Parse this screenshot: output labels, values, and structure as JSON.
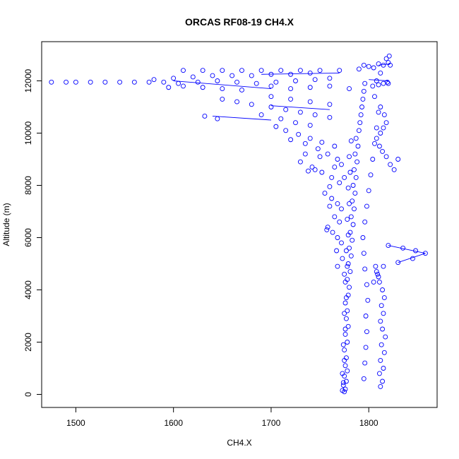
{
  "chart_data": {
    "type": "scatter",
    "title": "ORCAS RF08-19 CH4.X",
    "xlabel": "CH4.X",
    "ylabel": "Altitude (m)",
    "xlim": [
      1465,
      1870
    ],
    "ylim": [
      -500,
      13500
    ],
    "x_ticks": [
      1500,
      1600,
      1700,
      1800
    ],
    "x_tick_labels": [
      "1500",
      "1600",
      "1700",
      "1800"
    ],
    "y_ticks": [
      0,
      2000,
      4000,
      6000,
      8000,
      10000,
      12000
    ],
    "y_tick_labels": [
      "0",
      "2000",
      "4000",
      "6000",
      "8000",
      "10000",
      "12000"
    ],
    "marker": "open-circle",
    "color": "#0000ff",
    "grid": false,
    "series": [
      {
        "points": [
          [
            1775,
            100
          ],
          [
            1776,
            200
          ],
          [
            1774,
            350
          ],
          [
            1777,
            500
          ],
          [
            1775,
            700
          ],
          [
            1778,
            900
          ],
          [
            1776,
            1100
          ],
          [
            1777,
            1400
          ],
          [
            1775,
            1700
          ],
          [
            1778,
            2000
          ],
          [
            1776,
            2300
          ],
          [
            1779,
            2600
          ],
          [
            1777,
            2900
          ],
          [
            1778,
            3200
          ],
          [
            1776,
            3500
          ],
          [
            1779,
            3800
          ],
          [
            1780,
            4100
          ],
          [
            1778,
            4400
          ],
          [
            1781,
            4700
          ],
          [
            1779,
            5000
          ],
          [
            1782,
            5300
          ],
          [
            1780,
            5600
          ],
          [
            1783,
            5900
          ],
          [
            1781,
            6200
          ],
          [
            1784,
            6500
          ],
          [
            1782,
            6800
          ],
          [
            1785,
            7100
          ],
          [
            1783,
            7400
          ],
          [
            1786,
            7700
          ],
          [
            1784,
            8000
          ],
          [
            1787,
            8300
          ],
          [
            1785,
            8600
          ],
          [
            1788,
            8900
          ],
          [
            1786,
            9200
          ],
          [
            1789,
            9500
          ],
          [
            1787,
            9800
          ],
          [
            1790,
            10100
          ],
          [
            1791,
            10400
          ],
          [
            1792,
            10700
          ],
          [
            1793,
            11000
          ],
          [
            1794,
            11300
          ],
          [
            1795,
            11600
          ],
          [
            1796,
            11900
          ],
          [
            1773,
            150
          ],
          [
            1774,
            450
          ],
          [
            1773,
            800
          ],
          [
            1775,
            1300
          ],
          [
            1774,
            1900
          ],
          [
            1776,
            2500
          ],
          [
            1775,
            3100
          ],
          [
            1777,
            3700
          ],
          [
            1776,
            4300
          ],
          [
            1778,
            4900
          ],
          [
            1777,
            5500
          ],
          [
            1779,
            6100
          ],
          [
            1778,
            6700
          ],
          [
            1780,
            7300
          ],
          [
            1779,
            7900
          ],
          [
            1781,
            8500
          ],
          [
            1780,
            9100
          ],
          [
            1782,
            9700
          ],
          [
            1795,
            600
          ],
          [
            1796,
            1200
          ],
          [
            1797,
            1800
          ],
          [
            1798,
            2400
          ],
          [
            1797,
            3000
          ],
          [
            1799,
            3600
          ],
          [
            1798,
            4200
          ],
          [
            1796,
            4800
          ],
          [
            1795,
            5400
          ],
          [
            1794,
            6000
          ],
          [
            1796,
            6600
          ],
          [
            1798,
            7200
          ],
          [
            1800,
            7800
          ],
          [
            1802,
            8400
          ],
          [
            1804,
            9000
          ],
          [
            1806,
            9600
          ],
          [
            1808,
            10200
          ],
          [
            1810,
            10800
          ],
          [
            1806,
            11400
          ],
          [
            1804,
            11800
          ],
          [
            1812,
            300
          ],
          [
            1814,
            500
          ],
          [
            1811,
            800
          ],
          [
            1815,
            1000
          ],
          [
            1812,
            1300
          ],
          [
            1816,
            1600
          ],
          [
            1813,
            1900
          ],
          [
            1817,
            2200
          ],
          [
            1814,
            2500
          ],
          [
            1812,
            2800
          ],
          [
            1815,
            3100
          ],
          [
            1813,
            3400
          ],
          [
            1816,
            3700
          ],
          [
            1814,
            4000
          ],
          [
            1811,
            4300
          ],
          [
            1809,
            4600
          ],
          [
            1807,
            4900
          ],
          [
            1811,
            9500
          ],
          [
            1814,
            9300
          ],
          [
            1818,
            9100
          ],
          [
            1822,
            8800
          ],
          [
            1826,
            8600
          ],
          [
            1830,
            9000
          ],
          [
            1808,
            9800
          ],
          [
            1812,
            10000
          ],
          [
            1815,
            10200
          ],
          [
            1818,
            10400
          ],
          [
            1816,
            10700
          ],
          [
            1812,
            11000
          ],
          [
            1820,
            5700
          ],
          [
            1835,
            5600
          ],
          [
            1848,
            5500
          ],
          [
            1858,
            5400
          ],
          [
            1845,
            5200
          ],
          [
            1830,
            5050
          ],
          [
            1815,
            4900
          ],
          [
            1808,
            4700
          ],
          [
            1810,
            4500
          ],
          [
            1805,
            4300
          ],
          [
            1808,
            12000
          ],
          [
            1812,
            12300
          ],
          [
            1815,
            12600
          ],
          [
            1818,
            12850
          ],
          [
            1821,
            12950
          ],
          [
            1810,
            12650
          ],
          [
            1805,
            12500
          ],
          [
            1800,
            12550
          ],
          [
            1795,
            12600
          ],
          [
            1790,
            12450
          ],
          [
            1820,
            12700
          ],
          [
            1822,
            12600
          ],
          [
            1815,
            11900
          ],
          [
            1819,
            11950
          ],
          [
            1820,
            11900
          ],
          [
            1810,
            11850
          ],
          [
            1770,
            12400
          ],
          [
            1750,
            12400
          ],
          [
            1730,
            12400
          ],
          [
            1710,
            12400
          ],
          [
            1690,
            12400
          ],
          [
            1670,
            12400
          ],
          [
            1650,
            12400
          ],
          [
            1630,
            12400
          ],
          [
            1610,
            12400
          ],
          [
            1740,
            12300
          ],
          [
            1720,
            12250
          ],
          [
            1700,
            12250
          ],
          [
            1680,
            12200
          ],
          [
            1660,
            12200
          ],
          [
            1640,
            12200
          ],
          [
            1620,
            12150
          ],
          [
            1600,
            12100
          ],
          [
            1580,
            12050
          ],
          [
            1760,
            12100
          ],
          [
            1745,
            12050
          ],
          [
            1725,
            12000
          ],
          [
            1705,
            11950
          ],
          [
            1685,
            11900
          ],
          [
            1665,
            11950
          ],
          [
            1645,
            12000
          ],
          [
            1625,
            11950
          ],
          [
            1605,
            11900
          ],
          [
            1590,
            11950
          ],
          [
            1575,
            11950
          ],
          [
            1560,
            11950
          ],
          [
            1545,
            11950
          ],
          [
            1530,
            11950
          ],
          [
            1515,
            11950
          ],
          [
            1500,
            11950
          ],
          [
            1490,
            11950
          ],
          [
            1475,
            11950
          ],
          [
            1595,
            11750
          ],
          [
            1610,
            11800
          ],
          [
            1630,
            11750
          ],
          [
            1650,
            11700
          ],
          [
            1670,
            11650
          ],
          [
            1700,
            11800
          ],
          [
            1720,
            11700
          ],
          [
            1740,
            11750
          ],
          [
            1760,
            11800
          ],
          [
            1780,
            11700
          ],
          [
            1650,
            11300
          ],
          [
            1665,
            11200
          ],
          [
            1680,
            11100
          ],
          [
            1700,
            11000
          ],
          [
            1715,
            10900
          ],
          [
            1730,
            10800
          ],
          [
            1745,
            10700
          ],
          [
            1760,
            10600
          ],
          [
            1700,
            11400
          ],
          [
            1720,
            11300
          ],
          [
            1740,
            11200
          ],
          [
            1760,
            11100
          ],
          [
            1632,
            10650
          ],
          [
            1645,
            10550
          ],
          [
            1690,
            10700
          ],
          [
            1710,
            10550
          ],
          [
            1725,
            10400
          ],
          [
            1740,
            10300
          ],
          [
            1705,
            10250
          ],
          [
            1715,
            10100
          ],
          [
            1728,
            9950
          ],
          [
            1740,
            9800
          ],
          [
            1752,
            9650
          ],
          [
            1765,
            9500
          ],
          [
            1720,
            9750
          ],
          [
            1735,
            9600
          ],
          [
            1748,
            9400
          ],
          [
            1758,
            9200
          ],
          [
            1768,
            9000
          ],
          [
            1772,
            8800
          ],
          [
            1730,
            8900
          ],
          [
            1742,
            8700
          ],
          [
            1752,
            8500
          ],
          [
            1762,
            8300
          ],
          [
            1770,
            8100
          ],
          [
            1760,
            7950
          ],
          [
            1745,
            8600
          ],
          [
            1738,
            8550
          ],
          [
            1735,
            9200
          ],
          [
            1750,
            9100
          ],
          [
            1765,
            8700
          ],
          [
            1775,
            8300
          ],
          [
            1755,
            7700
          ],
          [
            1762,
            7500
          ],
          [
            1768,
            7300
          ],
          [
            1772,
            7100
          ],
          [
            1765,
            6800
          ],
          [
            1770,
            6600
          ],
          [
            1758,
            6400
          ],
          [
            1763,
            6200
          ],
          [
            1768,
            6000
          ],
          [
            1772,
            5800
          ],
          [
            1767,
            5500
          ],
          [
            1773,
            5200
          ],
          [
            1768,
            4900
          ],
          [
            1775,
            4600
          ],
          [
            1760,
            7200
          ],
          [
            1757,
            6300
          ]
        ]
      }
    ],
    "line_segments": [
      [
        [
          1600,
          12000
        ],
        [
          1700,
          11700
        ]
      ],
      [
        [
          1640,
          10650
        ],
        [
          1700,
          10500
        ]
      ],
      [
        [
          1700,
          11050
        ],
        [
          1760,
          10900
        ]
      ],
      [
        [
          1800,
          12050
        ],
        [
          1820,
          12000
        ]
      ],
      [
        [
          1810,
          12600
        ],
        [
          1822,
          12650
        ]
      ],
      [
        [
          1820,
          5700
        ],
        [
          1858,
          5400
        ]
      ],
      [
        [
          1830,
          5050
        ],
        [
          1858,
          5400
        ]
      ],
      [
        [
          1770,
          12300
        ],
        [
          1690,
          12250
        ]
      ]
    ]
  }
}
